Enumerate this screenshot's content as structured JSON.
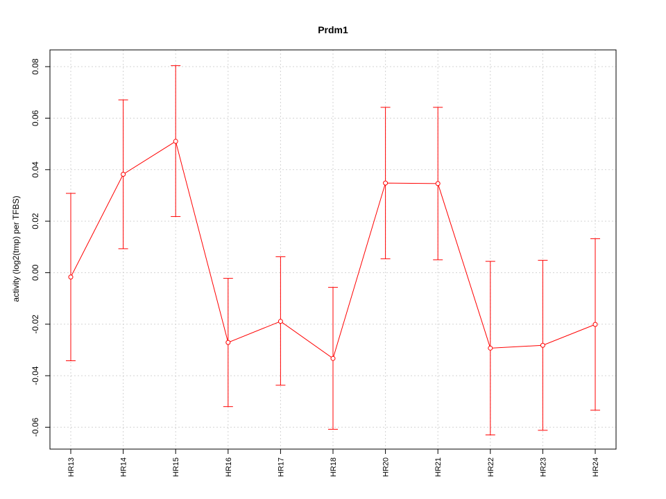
{
  "chart_data": {
    "type": "line",
    "title": "Prdm1",
    "xlabel": "",
    "ylabel": "activity (log2(tmp) per TFBS)",
    "categories": [
      "HR13",
      "HR14",
      "HR15",
      "HR16",
      "HR17",
      "HR18",
      "HR20",
      "HR21",
      "HR22",
      "HR23",
      "HR24"
    ],
    "series": [
      {
        "values": [
          -0.0017,
          0.0382,
          0.051,
          -0.0271,
          -0.0189,
          -0.0333,
          0.0348,
          0.0346,
          -0.0293,
          -0.0282,
          -0.0201
        ],
        "error_upper": [
          0.0308,
          0.0671,
          0.0804,
          -0.0022,
          0.0062,
          -0.0057,
          0.0642,
          0.0642,
          0.0044,
          0.0048,
          0.0132
        ],
        "error_lower": [
          -0.0342,
          0.0093,
          0.0218,
          -0.052,
          -0.0437,
          -0.0608,
          0.0054,
          0.005,
          -0.063,
          -0.0612,
          -0.0534
        ],
        "color": "#ff0000"
      }
    ],
    "ylim": [
      -0.0685,
      0.0865
    ],
    "yticks": [
      -0.06,
      -0.04,
      -0.02,
      0.0,
      0.02,
      0.04,
      0.06,
      0.08
    ],
    "ytick_labels": [
      "-0.06",
      "-0.04",
      "-0.02",
      "0.00",
      "0.02",
      "0.04",
      "0.06",
      "0.08"
    ],
    "grid": true,
    "grid_color": "#d3d3d3",
    "legend": "none"
  }
}
